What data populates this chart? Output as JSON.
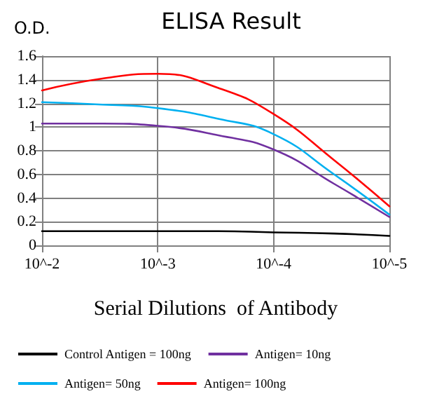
{
  "chart_data": {
    "type": "line",
    "title": "ELISA Result",
    "ylabel": "O.D.",
    "xlabel": "Serial Dilutions  of Antibody",
    "x": [
      0.01,
      0.003,
      0.001,
      0.0003,
      0.0001,
      3e-05,
      1e-05
    ],
    "series": [
      {
        "name": "Control Antigen = 100ng",
        "color": "#000000",
        "values": [
          0.12,
          0.12,
          0.12,
          0.12,
          0.11,
          0.1,
          0.08
        ]
      },
      {
        "name": "Antigen= 10ng",
        "color": "#7030a0",
        "values": [
          1.03,
          1.03,
          1.01,
          0.93,
          0.81,
          0.52,
          0.24
        ]
      },
      {
        "name": "Antigen= 50ng",
        "color": "#00b0f0",
        "values": [
          1.21,
          1.19,
          1.16,
          1.07,
          0.94,
          0.6,
          0.26
        ]
      },
      {
        "name": "Antigen= 100ng",
        "color": "#ff0000",
        "values": [
          1.31,
          1.41,
          1.45,
          1.33,
          1.11,
          0.72,
          0.33
        ]
      }
    ],
    "xlim": [
      0.01,
      1e-05
    ],
    "xticks": [
      {
        "value": 0.01,
        "label": "10^-2"
      },
      {
        "value": 0.001,
        "label": "10^-3"
      },
      {
        "value": 0.0001,
        "label": "10^-4"
      },
      {
        "value": 1e-05,
        "label": "10^-5"
      }
    ],
    "log": "x",
    "ylim": [
      0,
      1.6
    ],
    "yticks": [
      0,
      0.2,
      0.4,
      0.6,
      0.8,
      1,
      1.2,
      1.4,
      1.6
    ],
    "grid": true,
    "legend": "bottom",
    "marker": "none",
    "line_style": "solid"
  }
}
